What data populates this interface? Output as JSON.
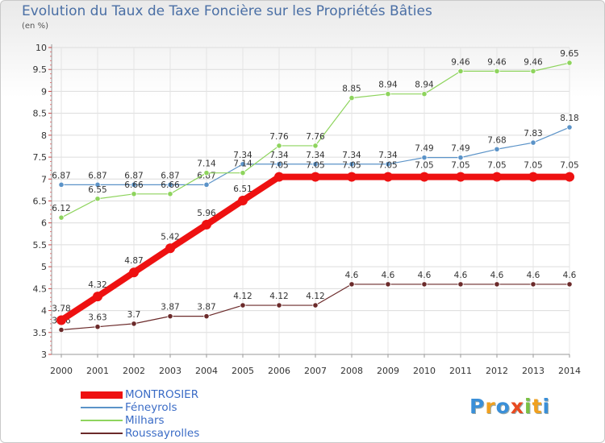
{
  "chart_data": {
    "type": "line",
    "title": "Evolution du Taux de Taxe Foncière sur les Propriétés Bâties",
    "unit_label": "(en %)",
    "categories": [
      "2000",
      "2001",
      "2002",
      "2003",
      "2004",
      "2005",
      "2006",
      "2007",
      "2008",
      "2009",
      "2010",
      "2011",
      "2012",
      "2013",
      "2014"
    ],
    "ylim": [
      3,
      10
    ],
    "yticks": [
      "3",
      "3.5",
      "4",
      "4.5",
      "5",
      "5.5",
      "6",
      "6.5",
      "7",
      "7.5",
      "8",
      "8.5",
      "9",
      "9.5",
      "10"
    ],
    "series": [
      {
        "name": "Féneyrols",
        "color": "#5b93c8",
        "width": 1.2,
        "values": [
          6.87,
          6.87,
          6.87,
          6.87,
          6.87,
          7.34,
          7.34,
          7.34,
          7.34,
          7.34,
          7.49,
          7.49,
          7.68,
          7.83,
          8.18
        ],
        "labels": [
          "6.87",
          "6.87",
          "6.87",
          "6.87",
          "6.87",
          "7.34",
          "7.34",
          "7.34",
          "7.34",
          "7.34",
          "7.49",
          "7.49",
          "7.68",
          "7.83",
          "8.18"
        ]
      },
      {
        "name": "Milhars",
        "color": "#8ed45d",
        "width": 1.2,
        "values": [
          6.12,
          6.55,
          6.66,
          6.66,
          7.14,
          7.14,
          7.76,
          7.76,
          8.85,
          8.94,
          8.94,
          9.46,
          9.46,
          9.46,
          9.65
        ],
        "labels": [
          "6.12",
          "6.55",
          "6.66",
          "6.66",
          "7.14",
          "7.14",
          "7.76",
          "7.76",
          "8.85",
          "8.94",
          "8.94",
          "9.46",
          "9.46",
          "9.46",
          "9.65"
        ]
      },
      {
        "name": "Roussayrolles",
        "color": "#6b2a2a",
        "width": 1.2,
        "values": [
          3.56,
          3.63,
          3.7,
          3.87,
          3.87,
          4.12,
          4.12,
          4.12,
          4.6,
          4.6,
          4.6,
          4.6,
          4.6,
          4.6,
          4.6
        ],
        "labels": [
          "3.56",
          "3.63",
          "3.7",
          "3.87",
          "3.87",
          "4.12",
          "4.12",
          "4.12",
          "4.6",
          "4.6",
          "4.6",
          "4.6",
          "4.6",
          "4.6",
          "4.6"
        ]
      },
      {
        "name": "MONTROSIER",
        "color": "#ee1111",
        "width": 8,
        "values": [
          3.78,
          4.32,
          4.87,
          5.42,
          5.96,
          6.51,
          7.05,
          7.05,
          7.05,
          7.05,
          7.05,
          7.05,
          7.05,
          7.05,
          7.05
        ],
        "labels": [
          "3.78",
          "4.32",
          "4.87",
          "5.42",
          "5.96",
          "6.51",
          "7.05",
          "7.05",
          "7.05",
          "7.05",
          "7.05",
          "7.05",
          "7.05",
          "7.05",
          "7.05"
        ]
      }
    ],
    "legend_order": [
      "MONTROSIER",
      "Féneyrols",
      "Milhars",
      "Roussayrolles"
    ],
    "legend_placement": "bottom-left"
  },
  "logo": {
    "letters": [
      "P",
      "r",
      "o",
      "x",
      "i",
      "t",
      "i"
    ],
    "colors": [
      "#3a8fd8",
      "#f0a020",
      "#3a8fd8",
      "#e84a20",
      "#7ac143",
      "#f0a020",
      "#3a8fd8"
    ]
  }
}
